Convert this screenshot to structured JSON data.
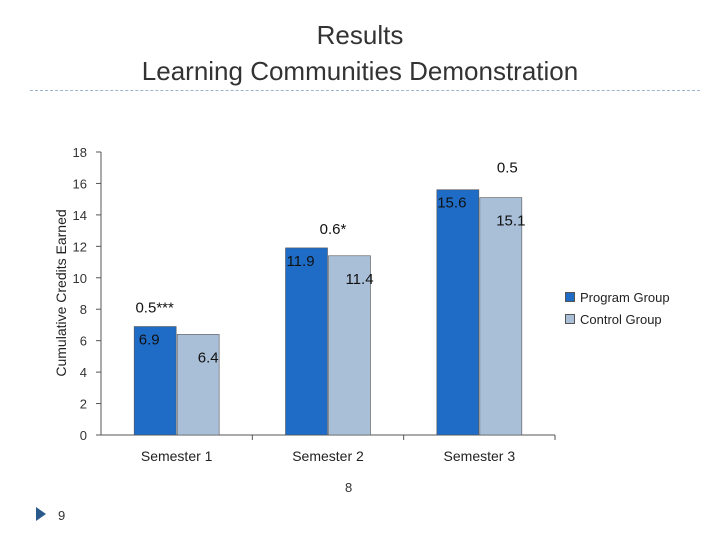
{
  "slide": {
    "title_line1": "Results",
    "title_line2": "Learning Communities Demonstration",
    "page_center": "8",
    "page_number": "9"
  },
  "colors": {
    "program": "#1f6cc7",
    "control": "#a9bfd8",
    "axis": "#555555",
    "footer_arrow": "#2a5a8c"
  },
  "chart_data": {
    "type": "bar",
    "categories": [
      "Semester 1",
      "Semester 2",
      "Semester 3"
    ],
    "series": [
      {
        "name": "Program Group",
        "values": [
          6.9,
          11.9,
          15.6
        ]
      },
      {
        "name": "Control Group",
        "values": [
          6.4,
          11.4,
          15.1
        ]
      }
    ],
    "annotations": [
      "0.5***",
      "0.6*",
      "0.5"
    ],
    "ylabel": "Cumulative Credits Earned",
    "ylim": [
      0,
      18
    ],
    "yticks": [
      0,
      2,
      4,
      6,
      8,
      10,
      12,
      14,
      16,
      18
    ],
    "legend_position": "right"
  }
}
